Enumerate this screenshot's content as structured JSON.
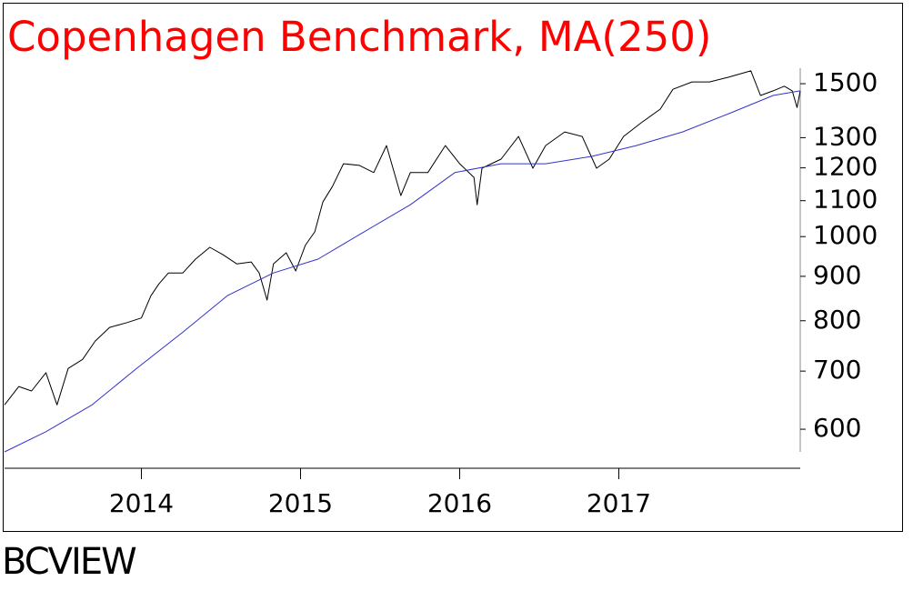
{
  "chart_data": {
    "type": "line",
    "title": "Copenhagen Benchmark, MA(250)",
    "footer": "BCVIEW",
    "title_color": "#ff0000",
    "log_scale": true,
    "xlim": [
      2013.14,
      2018.14
    ],
    "xticks": [
      2014,
      2015,
      2016,
      2017
    ],
    "ylim": [
      565,
      1563
    ],
    "yticks": [
      600,
      700,
      800,
      900,
      1000,
      1100,
      1200,
      1300,
      1500
    ],
    "series": [
      {
        "color": "#000000",
        "x": [
          2013.14,
          2013.23,
          2013.31,
          2013.4,
          2013.47,
          2013.54,
          2013.63,
          2013.71,
          2013.8,
          2013.91,
          2014.0,
          2014.06,
          2014.11,
          2014.17,
          2014.26,
          2014.34,
          2014.43,
          2014.51,
          2014.6,
          2014.69,
          2014.74,
          2014.79,
          2014.83,
          2014.91,
          2014.97,
          2015.03,
          2015.09,
          2015.14,
          2015.2,
          2015.27,
          2015.37,
          2015.46,
          2015.54,
          2015.63,
          2015.69,
          2015.8,
          2015.91,
          2016.0,
          2016.09,
          2016.11,
          2016.14,
          2016.26,
          2016.37,
          2016.46,
          2016.54,
          2016.66,
          2016.77,
          2016.86,
          2016.94,
          2017.03,
          2017.14,
          2017.26,
          2017.34,
          2017.46,
          2017.57,
          2017.69,
          2017.83,
          2017.89,
          2017.97,
          2018.04,
          2018.09,
          2018.12,
          2018.14
        ],
        "values": [
          640,
          672,
          664,
          697,
          640,
          705,
          722,
          758,
          786,
          796,
          806,
          855,
          882,
          908,
          908,
          942,
          972,
          954,
          930,
          935,
          908,
          845,
          930,
          958,
          913,
          977,
          1013,
          1096,
          1142,
          1213,
          1208,
          1185,
          1273,
          1115,
          1185,
          1185,
          1273,
          1213,
          1170,
          1088,
          1199,
          1228,
          1304,
          1199,
          1273,
          1320,
          1304,
          1199,
          1228,
          1304,
          1352,
          1402,
          1478,
          1507,
          1507,
          1526,
          1552,
          1454,
          1472,
          1490,
          1472,
          1408,
          1472
        ]
      },
      {
        "color": "#3333cc",
        "x": [
          2013.14,
          2013.4,
          2013.69,
          2013.97,
          2014.26,
          2014.54,
          2014.83,
          2015.11,
          2015.4,
          2015.69,
          2015.97,
          2016.26,
          2016.54,
          2016.83,
          2017.11,
          2017.4,
          2017.69,
          2017.97,
          2018.14
        ],
        "values": [
          565,
          596,
          640,
          705,
          776,
          855,
          908,
          942,
          1013,
          1088,
          1185,
          1213,
          1213,
          1237,
          1273,
          1320,
          1385,
          1454,
          1472
        ]
      }
    ]
  }
}
